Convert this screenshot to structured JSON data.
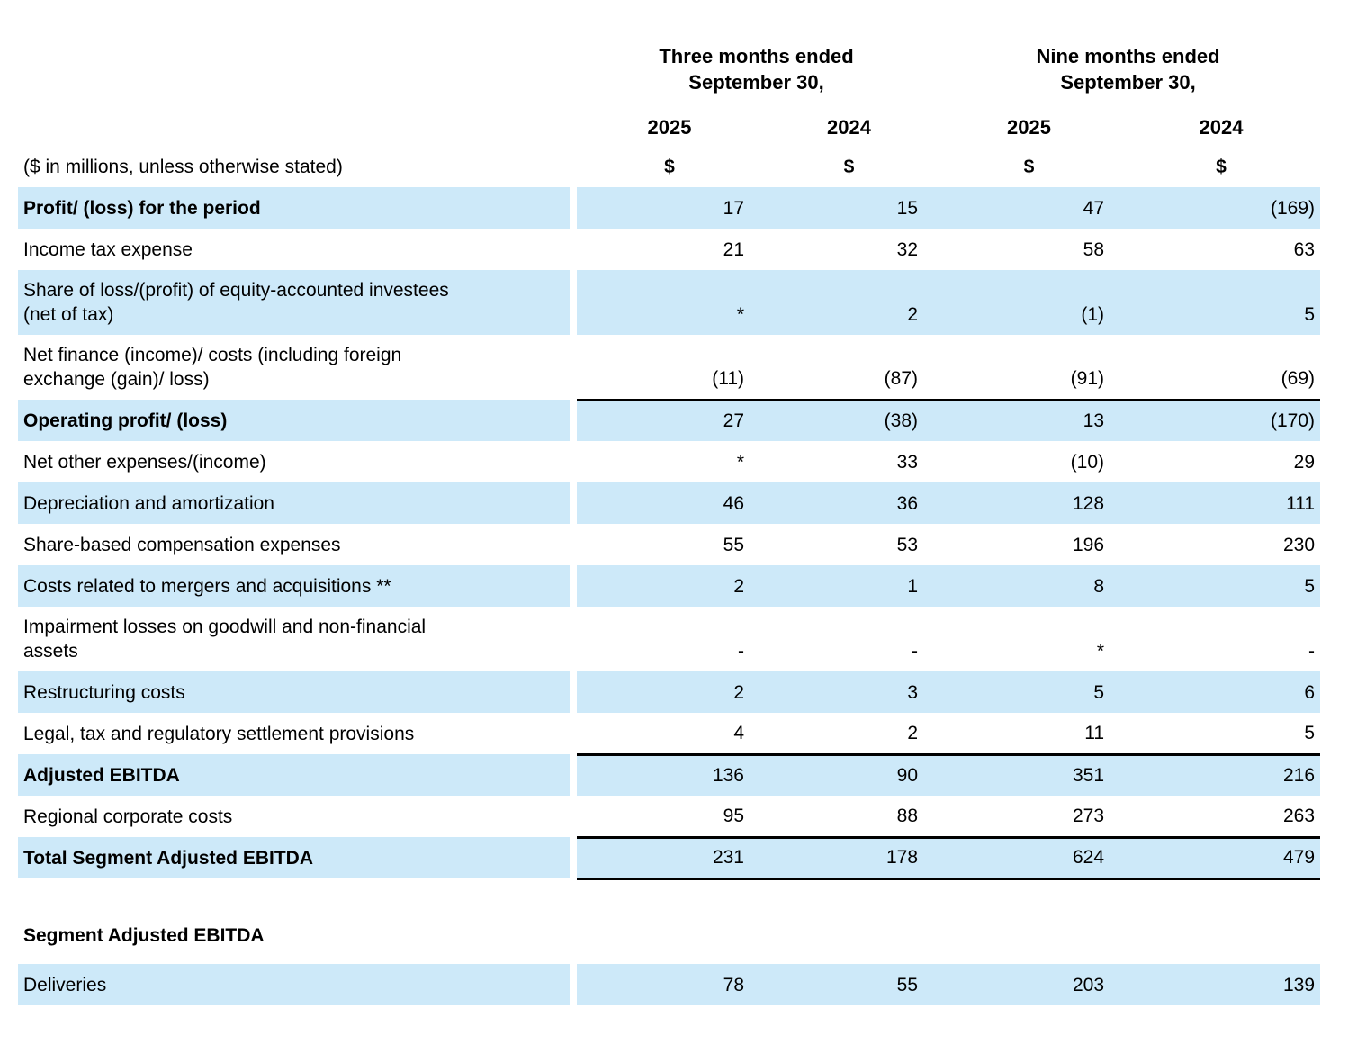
{
  "colors": {
    "row_shade": "#cde9f9",
    "text": "#000000",
    "rule_line": "#000000"
  },
  "header": {
    "group1": "Three months ended\nSeptember 30,",
    "group2": "Nine months ended\nSeptember 30,",
    "years": [
      "2025",
      "2024",
      "2025",
      "2024"
    ],
    "currency_symbols": [
      "$",
      "$",
      "$",
      "$"
    ],
    "note": "($ in millions, unless otherwise stated)"
  },
  "table": {
    "rows": [
      {
        "label": "Profit/ (loss) for the period",
        "bold": true,
        "shaded": true,
        "two_line": false,
        "border_top": false,
        "border_bottom": false,
        "values": [
          "17",
          "15",
          "47",
          "(169)"
        ]
      },
      {
        "label": "Income tax expense",
        "bold": false,
        "shaded": false,
        "two_line": false,
        "border_top": false,
        "border_bottom": false,
        "values": [
          "21",
          "32",
          "58",
          "63"
        ]
      },
      {
        "label": "Share of loss/(profit) of equity-accounted investees\n(net of tax)",
        "bold": false,
        "shaded": true,
        "two_line": true,
        "border_top": false,
        "border_bottom": false,
        "values": [
          "*",
          "2",
          "(1)",
          "5"
        ]
      },
      {
        "label": "Net finance (income)/ costs (including foreign\nexchange (gain)/ loss)",
        "bold": false,
        "shaded": false,
        "two_line": true,
        "border_top": false,
        "border_bottom": false,
        "values": [
          "(11)",
          "(87)",
          "(91)",
          "(69)"
        ]
      },
      {
        "label": "Operating profit/ (loss)",
        "bold": true,
        "shaded": true,
        "two_line": false,
        "border_top": true,
        "border_bottom": false,
        "values": [
          "27",
          "(38)",
          "13",
          "(170)"
        ]
      },
      {
        "label": "Net other expenses/(income)",
        "bold": false,
        "shaded": false,
        "two_line": false,
        "border_top": false,
        "border_bottom": false,
        "values": [
          "*",
          "33",
          "(10)",
          "29"
        ]
      },
      {
        "label": "Depreciation and amortization",
        "bold": false,
        "shaded": true,
        "two_line": false,
        "border_top": false,
        "border_bottom": false,
        "values": [
          "46",
          "36",
          "128",
          "111"
        ]
      },
      {
        "label": "Share-based compensation expenses",
        "bold": false,
        "shaded": false,
        "two_line": false,
        "border_top": false,
        "border_bottom": false,
        "values": [
          "55",
          "53",
          "196",
          "230"
        ]
      },
      {
        "label": "Costs related to mergers and acquisitions **",
        "bold": false,
        "shaded": true,
        "two_line": false,
        "border_top": false,
        "border_bottom": false,
        "values": [
          "2",
          "1",
          "8",
          "5"
        ]
      },
      {
        "label": "Impairment losses on goodwill and non-financial\nassets",
        "bold": false,
        "shaded": false,
        "two_line": true,
        "border_top": false,
        "border_bottom": false,
        "values": [
          "-",
          "-",
          "*",
          "-"
        ]
      },
      {
        "label": "Restructuring costs",
        "bold": false,
        "shaded": true,
        "two_line": false,
        "border_top": false,
        "border_bottom": false,
        "values": [
          "2",
          "3",
          "5",
          "6"
        ]
      },
      {
        "label": "Legal, tax and regulatory settlement provisions",
        "bold": false,
        "shaded": false,
        "two_line": false,
        "border_top": false,
        "border_bottom": false,
        "values": [
          "4",
          "2",
          "11",
          "5"
        ]
      },
      {
        "label": "Adjusted EBITDA",
        "bold": true,
        "shaded": true,
        "two_line": false,
        "border_top": true,
        "border_bottom": false,
        "values": [
          "136",
          "90",
          "351",
          "216"
        ]
      },
      {
        "label": "Regional corporate costs",
        "bold": false,
        "shaded": false,
        "two_line": false,
        "border_top": false,
        "border_bottom": false,
        "values": [
          "95",
          "88",
          "273",
          "263"
        ]
      },
      {
        "label": "Total Segment Adjusted EBITDA",
        "bold": true,
        "shaded": true,
        "two_line": false,
        "border_top": true,
        "border_bottom": true,
        "values": [
          "231",
          "178",
          "624",
          "479"
        ]
      }
    ]
  },
  "segment": {
    "title": "Segment Adjusted EBITDA",
    "rows": [
      {
        "label": "Deliveries",
        "bold": false,
        "shaded": true,
        "two_line": false,
        "border_top": false,
        "border_bottom": false,
        "values": [
          "78",
          "55",
          "203",
          "139"
        ]
      }
    ]
  }
}
